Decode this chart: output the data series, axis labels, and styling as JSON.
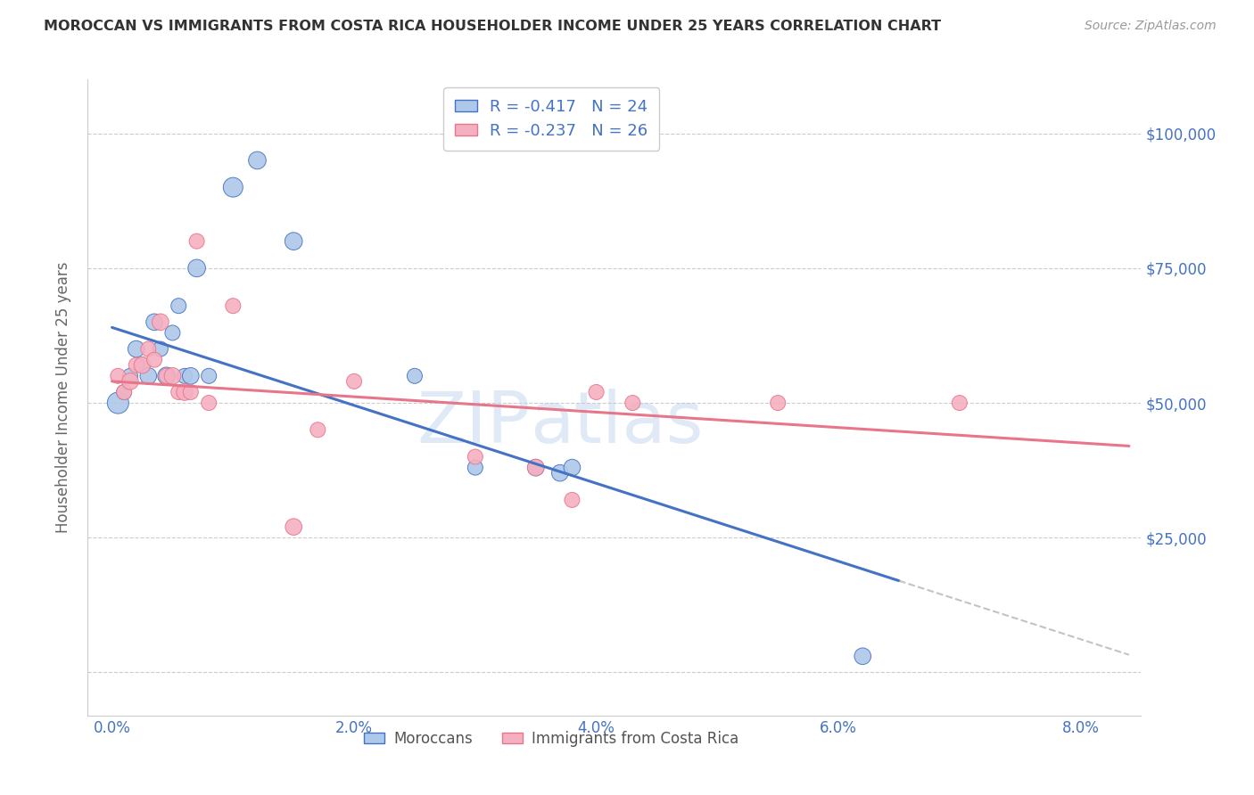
{
  "title": "MOROCCAN VS IMMIGRANTS FROM COSTA RICA HOUSEHOLDER INCOME UNDER 25 YEARS CORRELATION CHART",
  "source": "Source: ZipAtlas.com",
  "ylabel": "Householder Income Under 25 years",
  "xlabel_ticks": [
    "0.0%",
    "2.0%",
    "4.0%",
    "6.0%",
    "8.0%"
  ],
  "xlabel_vals": [
    0.0,
    2.0,
    4.0,
    6.0,
    8.0
  ],
  "ytick_vals": [
    0,
    25000,
    50000,
    75000,
    100000
  ],
  "ytick_labels": [
    "",
    "$25,000",
    "$50,000",
    "$75,000",
    "$100,000"
  ],
  "xlim": [
    -0.2,
    8.5
  ],
  "ylim": [
    -8000,
    110000
  ],
  "blue_R": -0.417,
  "blue_N": 24,
  "pink_R": -0.237,
  "pink_N": 26,
  "blue_label": "Moroccans",
  "pink_label": "Immigrants from Costa Rica",
  "blue_color": "#adc8e8",
  "pink_color": "#f5afc0",
  "blue_line_color": "#4472c4",
  "pink_line_color": "#e8768a",
  "axis_color": "#4472c4",
  "watermark": "ZIPatlas",
  "blue_line_x0": 0.0,
  "blue_line_y0": 64000,
  "blue_line_x1": 6.5,
  "blue_line_y1": 17000,
  "blue_dash_x0": 6.5,
  "blue_dash_x1": 8.4,
  "pink_line_x0": 0.0,
  "pink_line_y0": 54000,
  "pink_line_x1": 8.4,
  "pink_line_y1": 42000,
  "blue_points_x": [
    0.05,
    0.1,
    0.15,
    0.2,
    0.25,
    0.3,
    0.35,
    0.4,
    0.45,
    0.5,
    0.55,
    0.6,
    0.65,
    0.7,
    0.8,
    1.0,
    1.2,
    1.5,
    2.5,
    3.0,
    3.5,
    3.7,
    3.8,
    6.2
  ],
  "blue_points_y": [
    50000,
    52000,
    55000,
    60000,
    57000,
    55000,
    65000,
    60000,
    55000,
    63000,
    68000,
    55000,
    55000,
    75000,
    55000,
    90000,
    95000,
    80000,
    55000,
    38000,
    38000,
    37000,
    38000,
    3000
  ],
  "blue_sizes": [
    300,
    150,
    150,
    180,
    150,
    180,
    180,
    150,
    200,
    150,
    150,
    150,
    180,
    200,
    150,
    250,
    200,
    200,
    150,
    150,
    180,
    180,
    180,
    180
  ],
  "pink_points_x": [
    0.05,
    0.1,
    0.15,
    0.2,
    0.25,
    0.3,
    0.35,
    0.4,
    0.45,
    0.5,
    0.55,
    0.6,
    0.65,
    0.7,
    0.8,
    1.0,
    1.5,
    1.7,
    2.0,
    3.0,
    3.5,
    3.8,
    4.0,
    4.3,
    5.5,
    7.0
  ],
  "pink_points_y": [
    55000,
    52000,
    54000,
    57000,
    57000,
    60000,
    58000,
    65000,
    55000,
    55000,
    52000,
    52000,
    52000,
    80000,
    50000,
    68000,
    27000,
    45000,
    54000,
    40000,
    38000,
    32000,
    52000,
    50000,
    50000,
    50000
  ],
  "pink_sizes": [
    150,
    150,
    180,
    150,
    180,
    150,
    150,
    180,
    150,
    180,
    150,
    180,
    150,
    150,
    150,
    150,
    180,
    150,
    150,
    150,
    180,
    150,
    150,
    150,
    150,
    150
  ]
}
